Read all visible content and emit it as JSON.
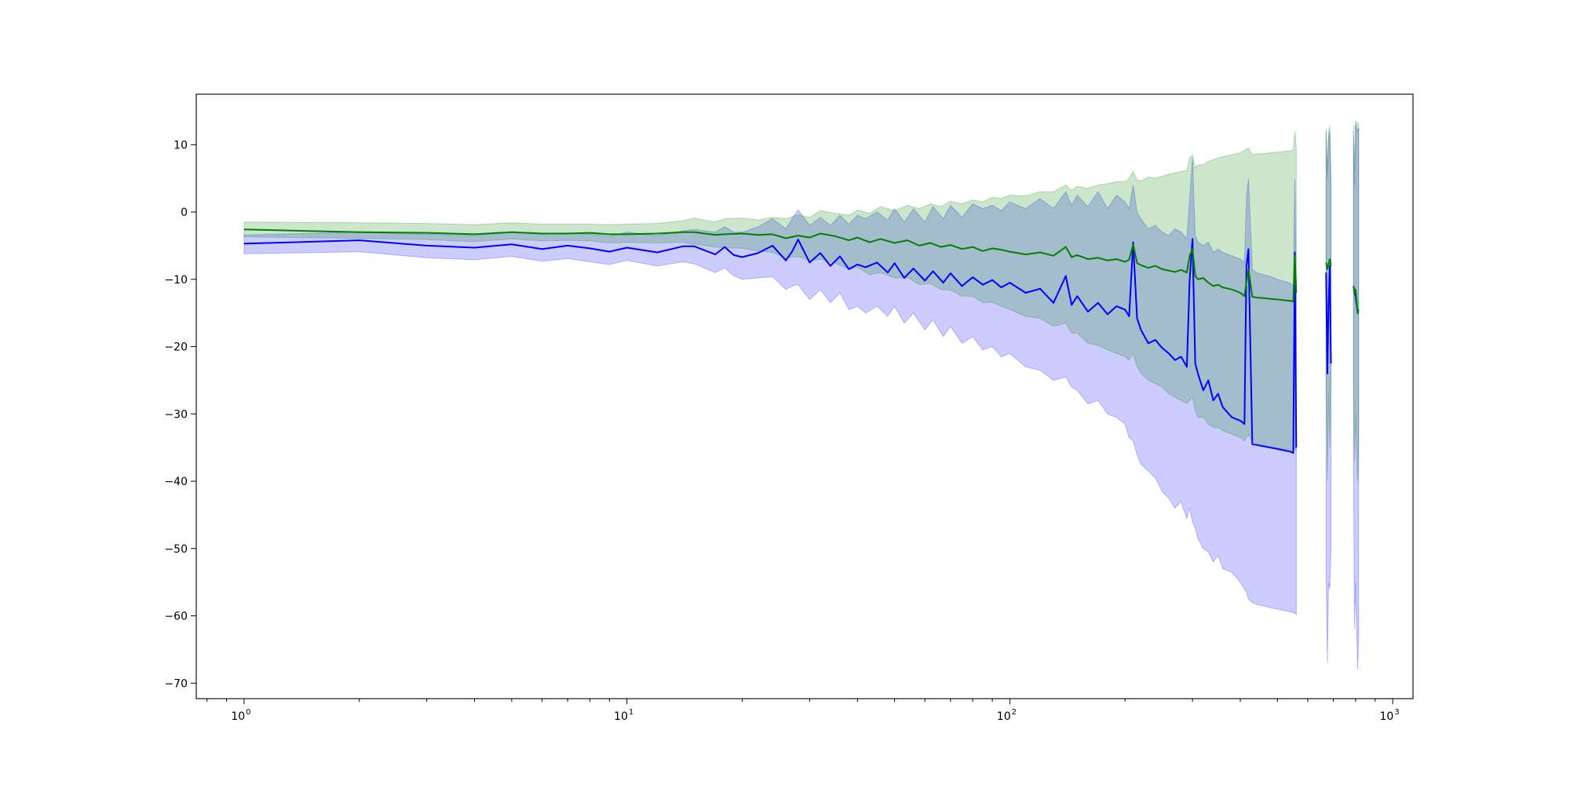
{
  "chart_data": {
    "type": "line",
    "title": "",
    "xlabel": "",
    "ylabel": "",
    "x_scale": "log",
    "xlim": [
      0.75,
      1130
    ],
    "ylim": [
      -72.3,
      17.5
    ],
    "grid": false,
    "legend": "none",
    "x_ticks": [
      {
        "base": "10",
        "exp": "0",
        "value": 1
      },
      {
        "base": "10",
        "exp": "1",
        "value": 10
      },
      {
        "base": "10",
        "exp": "2",
        "value": 100
      },
      {
        "base": "10",
        "exp": "3",
        "value": 1000
      }
    ],
    "y_ticks": [
      {
        "label": "10",
        "value": 10
      },
      {
        "label": "0",
        "value": 0
      },
      {
        "label": "−10",
        "value": -10
      },
      {
        "label": "−20",
        "value": -20
      },
      {
        "label": "−30",
        "value": -30
      },
      {
        "label": "−40",
        "value": -40
      },
      {
        "label": "−50",
        "value": -50
      },
      {
        "label": "−60",
        "value": -60
      },
      {
        "label": "−70",
        "value": -70
      }
    ],
    "series": [
      {
        "color": "#0000ff",
        "band_color": "#0000ff",
        "band_opacity": 0.2,
        "segments": [
          {
            "x": [
              1,
              2,
              3,
              4,
              5,
              6,
              7,
              8,
              9,
              10,
              12,
              14,
              15,
              17,
              18,
              19,
              20,
              22,
              24,
              26,
              27,
              28,
              30,
              32,
              34,
              36,
              38,
              40,
              42,
              45,
              48,
              50,
              53,
              56,
              60,
              63,
              67,
              70,
              75,
              80,
              85,
              90,
              95,
              100,
              110,
              120,
              130,
              140,
              145,
              150,
              160,
              170,
              180,
              190,
              200,
              205,
              210,
              215,
              220,
              230,
              240,
              250,
              260,
              270,
              280,
              290,
              295,
              300,
              305,
              310,
              320,
              330,
              340,
              350,
              360,
              380,
              400,
              410,
              415,
              420,
              430,
              440,
              460,
              480,
              500,
              520,
              540,
              550,
              555,
              560
            ],
            "y": [
              -4.7,
              -4.2,
              -5.0,
              -5.3,
              -4.8,
              -5.5,
              -5.0,
              -5.4,
              -5.9,
              -5.3,
              -6.0,
              -5.1,
              -5.1,
              -6.3,
              -5.2,
              -6.4,
              -6.7,
              -6.1,
              -5.0,
              -7.2,
              -5.9,
              -4.1,
              -7.5,
              -6.1,
              -8.0,
              -6.6,
              -8.5,
              -7.8,
              -8.2,
              -7.5,
              -9.0,
              -7.6,
              -9.8,
              -8.4,
              -10.2,
              -8.8,
              -10.5,
              -9.1,
              -11.0,
              -9.7,
              -10.8,
              -10.1,
              -11.2,
              -10.5,
              -12.0,
              -11.4,
              -13.5,
              -9.5,
              -13.8,
              -12.5,
              -14.8,
              -13.5,
              -15.2,
              -14.0,
              -14.5,
              -15.5,
              -4.5,
              -15.8,
              -17.5,
              -19.5,
              -19.0,
              -20.2,
              -21.0,
              -22.0,
              -21.5,
              -23.0,
              -10.0,
              -4.0,
              -22.5,
              -24.0,
              -26.5,
              -25.0,
              -28.0,
              -27.0,
              -29.0,
              -30.5,
              -31.0,
              -31.5,
              -8.0,
              -5.5,
              -34.5,
              -34.6,
              -34.8,
              -35.0,
              -35.2,
              -35.4,
              -35.6,
              -35.8,
              -6.0,
              -35.0
            ],
            "lower": [
              -6.2,
              -5.9,
              -6.8,
              -7.1,
              -6.6,
              -7.3,
              -6.9,
              -7.4,
              -7.8,
              -7.2,
              -8.0,
              -7.4,
              -7.7,
              -9.0,
              -8.3,
              -9.5,
              -10.0,
              -9.8,
              -9.6,
              -11.5,
              -11.0,
              -10.8,
              -13.0,
              -11.5,
              -13.5,
              -12.0,
              -14.5,
              -14.0,
              -15.0,
              -14.0,
              -15.5,
              -14.0,
              -16.5,
              -15.0,
              -17.5,
              -16.0,
              -18.5,
              -17.0,
              -19.5,
              -18.5,
              -20.5,
              -20.0,
              -21.5,
              -21.0,
              -23.0,
              -23.5,
              -25.0,
              -24.5,
              -26.0,
              -26.5,
              -28.5,
              -28.0,
              -30.0,
              -30.5,
              -31.5,
              -33.5,
              -34.0,
              -36.0,
              -37.5,
              -38.5,
              -39.5,
              -41.5,
              -42.5,
              -44.0,
              -43.0,
              -45.5,
              -44.0,
              -46.0,
              -47.0,
              -48.5,
              -50.0,
              -50.5,
              -52.0,
              -51.0,
              -53.0,
              -53.5,
              -55.0,
              -56.0,
              -56.5,
              -57.5,
              -58.0,
              -58.3,
              -58.5,
              -58.8,
              -59.0,
              -59.2,
              -59.4,
              -59.5,
              -59.6,
              -59.8
            ],
            "upper": [
              -3.4,
              -3.0,
              -3.3,
              -3.5,
              -3.0,
              -3.3,
              -3.1,
              -3.3,
              -3.6,
              -3.0,
              -3.5,
              -2.8,
              -2.6,
              -3.0,
              -2.2,
              -3.0,
              -3.0,
              -2.2,
              -1.0,
              -2.5,
              -1.0,
              0.3,
              -2.0,
              -0.8,
              -2.0,
              -0.5,
              -1.8,
              -0.5,
              -1.0,
              0.0,
              -1.2,
              0.5,
              -1.5,
              0.5,
              -1.5,
              0.8,
              -1.0,
              1.0,
              -0.8,
              1.2,
              0.5,
              1.0,
              0.2,
              1.5,
              0.5,
              2.0,
              0.5,
              3.0,
              1.0,
              2.5,
              0.8,
              3.0,
              0.5,
              2.5,
              1.5,
              0.5,
              4.0,
              0.0,
              -1.0,
              -2.5,
              -2.0,
              -3.0,
              -3.5,
              -2.5,
              -3.0,
              -4.0,
              2.0,
              8.0,
              -3.5,
              -4.5,
              -5.0,
              -4.5,
              -6.0,
              -5.5,
              -6.0,
              -6.5,
              -7.0,
              -7.5,
              2.0,
              5.0,
              -8.5,
              -9.0,
              -9.3,
              -9.6,
              -10.0,
              -10.3,
              -10.6,
              -11.0,
              5.0,
              -11.0
            ]
          },
          {
            "x": [
              670,
              675,
              680,
              685,
              690
            ],
            "y": [
              -9.0,
              -24.0,
              -14.0,
              -8.0,
              -22.5
            ],
            "lower": [
              -53.0,
              -67.0,
              -55.0,
              -56.0,
              -50.0
            ],
            "upper": [
              12.0,
              5.0,
              11.0,
              12.0,
              3.0
            ]
          },
          {
            "x": [
              790,
              795,
              800,
              810,
              815
            ],
            "y": [
              -11.0,
              -12.0,
              -12.5,
              -15.0,
              -15.0
            ],
            "lower": [
              -37.0,
              -62.0,
              -55.0,
              -68.0,
              -63.0
            ],
            "upper": [
              12.0,
              4.0,
              13.0,
              12.0,
              12.5
            ]
          }
        ]
      },
      {
        "color": "#008000",
        "band_color": "#008000",
        "band_opacity": 0.2,
        "segments": [
          {
            "x": [
              1,
              2,
              3,
              4,
              5,
              6,
              7,
              8,
              9,
              10,
              12,
              14,
              15,
              17,
              18,
              20,
              22,
              24,
              26,
              28,
              30,
              32,
              35,
              38,
              40,
              43,
              46,
              50,
              54,
              58,
              62,
              66,
              70,
              75,
              80,
              85,
              90,
              95,
              100,
              110,
              120,
              130,
              140,
              145,
              150,
              160,
              170,
              180,
              190,
              200,
              205,
              210,
              215,
              220,
              230,
              240,
              250,
              260,
              270,
              280,
              290,
              295,
              300,
              305,
              310,
              320,
              330,
              340,
              350,
              360,
              380,
              400,
              410,
              420,
              430,
              440,
              460,
              480,
              500,
              520,
              540,
              550,
              555,
              560
            ],
            "y": [
              -2.6,
              -3.0,
              -3.1,
              -3.3,
              -3.0,
              -3.2,
              -3.2,
              -3.1,
              -3.3,
              -3.3,
              -3.2,
              -3.0,
              -3.0,
              -3.4,
              -3.3,
              -3.2,
              -3.4,
              -3.3,
              -3.9,
              -3.5,
              -3.8,
              -3.2,
              -3.6,
              -4.2,
              -3.8,
              -4.5,
              -4.0,
              -4.6,
              -4.2,
              -5.0,
              -4.6,
              -5.2,
              -4.9,
              -5.5,
              -5.2,
              -5.8,
              -5.4,
              -5.6,
              -5.9,
              -6.3,
              -6.0,
              -6.5,
              -5.2,
              -6.7,
              -6.4,
              -7.0,
              -6.8,
              -7.2,
              -7.0,
              -7.4,
              -7.1,
              -4.8,
              -7.6,
              -7.9,
              -8.3,
              -8.0,
              -8.5,
              -8.7,
              -8.9,
              -8.6,
              -9.0,
              -6.5,
              -5.5,
              -9.5,
              -10.0,
              -9.8,
              -10.5,
              -11.0,
              -10.8,
              -11.2,
              -11.5,
              -12.0,
              -12.5,
              -8.5,
              -12.6,
              -12.7,
              -12.8,
              -12.9,
              -13.0,
              -13.1,
              -13.2,
              -13.3,
              -6.5,
              -12.0
            ],
            "lower": [
              -3.7,
              -3.9,
              -4.1,
              -4.4,
              -4.0,
              -4.3,
              -4.2,
              -4.3,
              -4.6,
              -4.5,
              -4.6,
              -4.5,
              -4.8,
              -5.2,
              -5.3,
              -5.4,
              -5.8,
              -6.0,
              -6.8,
              -6.6,
              -7.3,
              -7.0,
              -7.6,
              -8.5,
              -8.2,
              -9.3,
              -9.0,
              -9.8,
              -9.7,
              -10.8,
              -10.6,
              -11.5,
              -11.6,
              -12.5,
              -12.5,
              -13.5,
              -13.4,
              -14.0,
              -14.5,
              -15.5,
              -15.8,
              -17.0,
              -16.5,
              -18.0,
              -18.0,
              -19.5,
              -19.8,
              -20.5,
              -21.0,
              -21.5,
              -22.0,
              -21.0,
              -23.0,
              -24.0,
              -25.0,
              -25.5,
              -26.0,
              -27.0,
              -27.5,
              -28.0,
              -28.5,
              -28.0,
              -27.5,
              -29.5,
              -30.5,
              -30.5,
              -31.5,
              -32.0,
              -32.0,
              -32.5,
              -33.0,
              -33.5,
              -34.0,
              -33.0,
              -34.2,
              -34.4,
              -34.6,
              -34.8,
              -35.0,
              -35.2,
              -35.4,
              -35.6,
              -35.0,
              -35.5
            ],
            "upper": [
              -1.5,
              -1.6,
              -1.7,
              -1.9,
              -1.6,
              -1.8,
              -1.8,
              -1.8,
              -1.9,
              -1.8,
              -1.7,
              -1.3,
              -0.9,
              -1.5,
              -1.0,
              -0.9,
              -1.2,
              -0.8,
              -1.0,
              -0.4,
              -0.8,
              0.2,
              -0.2,
              -0.5,
              0.3,
              -0.2,
              0.8,
              0.2,
              1.0,
              0.5,
              1.2,
              0.8,
              1.6,
              1.2,
              1.8,
              1.5,
              2.2,
              2.0,
              2.5,
              2.4,
              3.0,
              3.0,
              4.0,
              3.2,
              3.8,
              3.5,
              4.0,
              4.2,
              4.5,
              4.5,
              5.0,
              6.0,
              4.8,
              4.6,
              5.2,
              5.0,
              5.3,
              5.6,
              5.8,
              6.0,
              6.2,
              8.0,
              8.5,
              6.5,
              7.0,
              7.0,
              7.5,
              7.8,
              8.0,
              8.2,
              8.5,
              8.8,
              9.2,
              9.5,
              8.5,
              8.6,
              8.7,
              8.8,
              8.9,
              9.0,
              9.1,
              9.2,
              12.0,
              9.5
            ]
          },
          {
            "x": [
              670,
              675,
              680,
              685,
              690
            ],
            "y": [
              -7.5,
              -8.5,
              -7.8,
              -7.0,
              -8.0
            ],
            "lower": [
              -24.0,
              -40.0,
              -27.0,
              -35.0,
              -22.0
            ],
            "upper": [
              12.5,
              6.0,
              12.0,
              12.8,
              6.0
            ]
          },
          {
            "x": [
              790,
              795,
              800,
              810,
              815
            ],
            "y": [
              -11.0,
              -12.0,
              -11.5,
              -15.0,
              -14.5
            ],
            "lower": [
              -25.0,
              -37.0,
              -30.0,
              -40.0,
              -35.0
            ],
            "upper": [
              13.0,
              6.0,
              13.5,
              13.2,
              13.0
            ]
          }
        ]
      }
    ]
  }
}
